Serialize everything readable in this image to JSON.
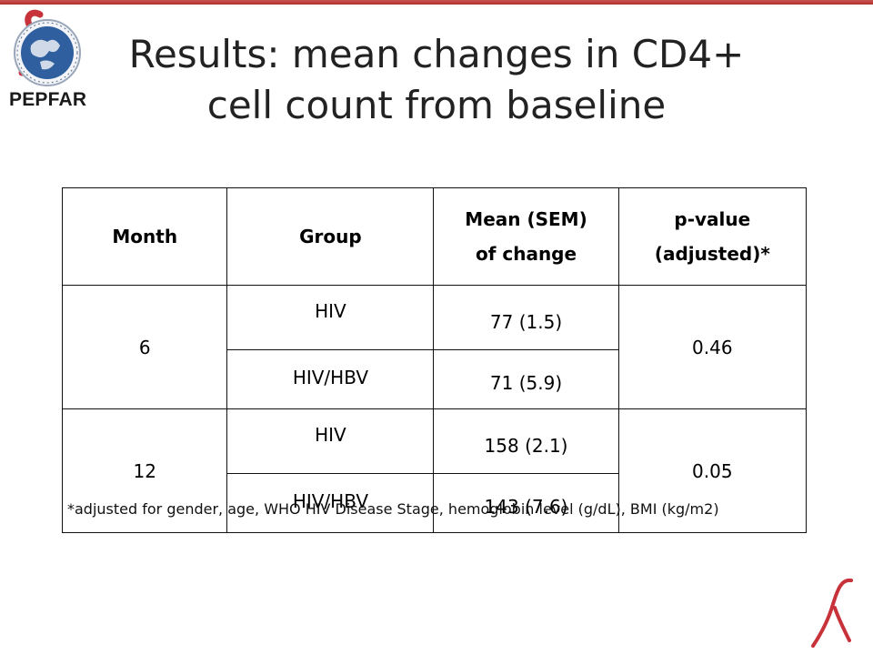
{
  "logo": {
    "text": "PEPFAR"
  },
  "title": "Results: mean changes in CD4+ cell count from baseline",
  "table": {
    "headers": {
      "month": "Month",
      "group": "Group",
      "mean": "Mean (SEM) of change",
      "p": "p-value (adjusted)*"
    },
    "blocks": [
      {
        "month": "6",
        "p": "0.46",
        "rows": [
          {
            "group": "HIV",
            "mean": "77 (1.5)"
          },
          {
            "group": "HIV/HBV",
            "mean": "71 (5.9)"
          }
        ]
      },
      {
        "month": "12",
        "p": "0.05",
        "rows": [
          {
            "group": "HIV",
            "mean": "158 (2.1)"
          },
          {
            "group": "HIV/HBV",
            "mean": "143 (7.6)"
          }
        ]
      }
    ]
  },
  "footnote": "*adjusted for gender, age, WHO HIV Disease Stage, hemoglobin level (g/dL), BMI (kg/m2)",
  "colors": {
    "accent_bar": "#b83a35",
    "ribbon": "#c8323a",
    "globe_blue": "#2f5f9e"
  }
}
